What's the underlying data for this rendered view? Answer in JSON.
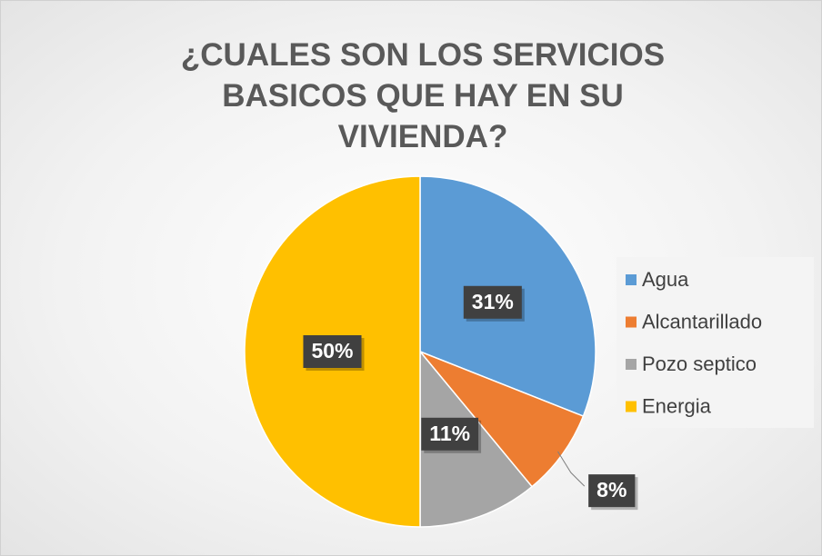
{
  "chart_data": {
    "type": "pie",
    "title": "¿CUALES SON LOS SERVICIOS BASICOS QUE HAY EN SU VIVIENDA?",
    "categories": [
      "Agua",
      "Alcantarillado",
      "Pozo septico",
      "Energia"
    ],
    "values": [
      31,
      8,
      11,
      50
    ],
    "value_labels": [
      "31%",
      "8%",
      "11%",
      "50%"
    ],
    "colors": [
      "#5b9bd5",
      "#ed7d31",
      "#a5a5a5",
      "#ffc000"
    ],
    "legend": "right"
  }
}
